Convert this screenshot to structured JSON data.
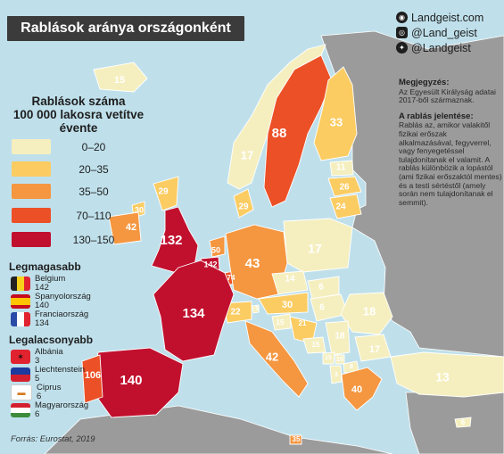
{
  "title": "Rablások aránya országonként",
  "social": [
    {
      "icon": "globe-icon",
      "text": "Landgeist.com"
    },
    {
      "icon": "instagram-icon",
      "text": "@Land_geist"
    },
    {
      "icon": "twitter-icon",
      "text": "@Landgeist"
    }
  ],
  "legend": {
    "title_lines": [
      "Rablások száma",
      "100 000 lakosra vetítve",
      "évente"
    ],
    "bins": [
      {
        "label": "0–20",
        "color": "#f5efbf"
      },
      {
        "label": "20–35",
        "color": "#fbcc62"
      },
      {
        "label": "35–50",
        "color": "#f59640"
      },
      {
        "label": "70–110",
        "color": "#ec5026"
      },
      {
        "label": "130–150",
        "color": "#c1102e"
      }
    ]
  },
  "highest": {
    "title": "Legmagasabb",
    "items": [
      {
        "country": "Belgium",
        "value": "142"
      },
      {
        "country": "Spanyolország",
        "value": "140"
      },
      {
        "country": "Franciaország",
        "value": "134"
      }
    ]
  },
  "lowest": {
    "title": "Legalacsonyabb",
    "items": [
      {
        "country": "Albánia",
        "value": "3"
      },
      {
        "country": "Liechtenstein",
        "value": "5"
      },
      {
        "country": "Ciprus",
        "value": "6"
      },
      {
        "country": "Magyarország",
        "value": "6"
      }
    ]
  },
  "notes": {
    "note_title": "Megjegyzés:",
    "note_text": "Az Egyesült Királyság adatai 2017-ből származnak.",
    "definition_title": "A rablás jelentése:",
    "definition_text": "Rablás az, amikor valakitől fizikai erőszak alkalmazásával, fegyverrel, vagy fenyegetéssel tulajdonítanak el valamit. A rablás különbözik a lopástól (ami fizikai erőszaktól mentes) és a testi sértéstől (amely során nem tulajdonítanak el semmit)."
  },
  "source": "Forrás: Eurostat, 2019",
  "colors": {
    "sea": "#bfe0eb",
    "no_data": "#9b9b9b",
    "title_bar": "#3b3b3b",
    "accent": "#2cbfa0"
  },
  "country_values": [
    {
      "name": "Iceland",
      "value": "15",
      "bin": 0
    },
    {
      "name": "Norway",
      "value": "17",
      "bin": 0
    },
    {
      "name": "Sweden",
      "value": "88",
      "bin": 3
    },
    {
      "name": "Finland",
      "value": "33",
      "bin": 1
    },
    {
      "name": "Estonia",
      "value": "11",
      "bin": 0
    },
    {
      "name": "Latvia",
      "value": "26",
      "bin": 1
    },
    {
      "name": "Lithuania",
      "value": "24",
      "bin": 1
    },
    {
      "name": "Denmark",
      "value": "29",
      "bin": 1
    },
    {
      "name": "United Kingdom",
      "value": "132",
      "bin": 4
    },
    {
      "name": "Scotland",
      "value": "29",
      "bin": 1
    },
    {
      "name": "Northern Ireland",
      "value": "30",
      "bin": 1
    },
    {
      "name": "Ireland",
      "value": "42",
      "bin": 2
    },
    {
      "name": "Netherlands",
      "value": "50",
      "bin": 2
    },
    {
      "name": "Belgium",
      "value": "142",
      "bin": 4
    },
    {
      "name": "Luxembourg",
      "value": "74",
      "bin": 3
    },
    {
      "name": "Germany",
      "value": "43",
      "bin": 2
    },
    {
      "name": "Poland",
      "value": "17",
      "bin": 0
    },
    {
      "name": "Czechia",
      "value": "14",
      "bin": 0
    },
    {
      "name": "Slovakia",
      "value": "6",
      "bin": 0
    },
    {
      "name": "Austria",
      "value": "30",
      "bin": 1
    },
    {
      "name": "Hungary",
      "value": "6",
      "bin": 0
    },
    {
      "name": "Switzerland",
      "value": "22",
      "bin": 1
    },
    {
      "name": "Liechtenstein",
      "value": "5",
      "bin": 0
    },
    {
      "name": "Slovenia",
      "value": "15",
      "bin": 0
    },
    {
      "name": "Croatia",
      "value": "21",
      "bin": 1
    },
    {
      "name": "France",
      "value": "134",
      "bin": 4
    },
    {
      "name": "Spain",
      "value": "140",
      "bin": 4
    },
    {
      "name": "Portugal",
      "value": "106",
      "bin": 3
    },
    {
      "name": "Italy",
      "value": "42",
      "bin": 2
    },
    {
      "name": "Malta",
      "value": "35",
      "bin": 2
    },
    {
      "name": "Romania",
      "value": "18",
      "bin": 0
    },
    {
      "name": "Serbia",
      "value": "18",
      "bin": 0
    },
    {
      "name": "Bosnia and Herzegovina",
      "value": "15",
      "bin": 0
    },
    {
      "name": "Montenegro",
      "value": "15",
      "bin": 0
    },
    {
      "name": "Kosovo",
      "value": "10",
      "bin": 0
    },
    {
      "name": "North Macedonia",
      "value": "8",
      "bin": 0
    },
    {
      "name": "Albania",
      "value": "3",
      "bin": 0
    },
    {
      "name": "Bulgaria",
      "value": "17",
      "bin": 0
    },
    {
      "name": "Greece",
      "value": "40",
      "bin": 2
    },
    {
      "name": "Turkey",
      "value": "13",
      "bin": 0
    },
    {
      "name": "Cyprus",
      "value": "6",
      "bin": 0
    }
  ]
}
